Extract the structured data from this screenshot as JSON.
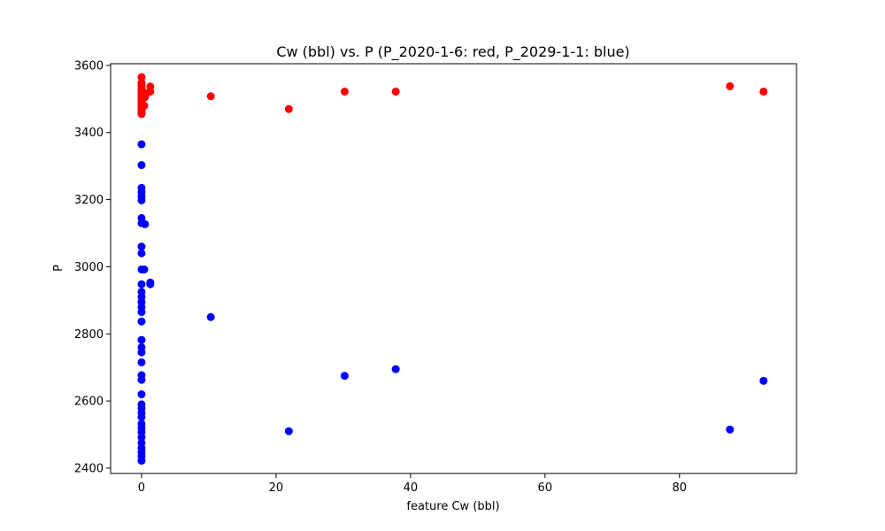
{
  "chart_data": {
    "type": "scatter",
    "title": "Cw (bbl) vs. P (P_2020-1-6: red, P_2029-1-1: blue)",
    "xlabel": "feature Cw (bbl)",
    "ylabel": "P",
    "xlim": [
      -4.6,
      97.4
    ],
    "ylim": [
      2384,
      3605
    ],
    "xticks": [
      0,
      20,
      40,
      60,
      80
    ],
    "yticks": [
      2400,
      2600,
      2800,
      3000,
      3200,
      3400,
      3600
    ],
    "grid": false,
    "legend": "none",
    "series": [
      {
        "color": "#ff0000",
        "points": [
          [
            0,
            3565
          ],
          [
            0,
            3548
          ],
          [
            0,
            3540
          ],
          [
            0,
            3533
          ],
          [
            0,
            3527
          ],
          [
            0,
            3520
          ],
          [
            0,
            3513
          ],
          [
            0,
            3507
          ],
          [
            0,
            3500
          ],
          [
            0,
            3495
          ],
          [
            0,
            3490
          ],
          [
            0,
            3484
          ],
          [
            0,
            3478
          ],
          [
            0,
            3472
          ],
          [
            0,
            3466
          ],
          [
            0,
            3460
          ],
          [
            0,
            3455
          ],
          [
            0.3,
            3520
          ],
          [
            0.5,
            3505
          ],
          [
            0.4,
            3480
          ],
          [
            0.6,
            3512
          ],
          [
            1.3,
            3537
          ],
          [
            1.3,
            3522
          ],
          [
            10.3,
            3508
          ],
          [
            21.9,
            3470
          ],
          [
            30.2,
            3522
          ],
          [
            37.8,
            3522
          ],
          [
            87.5,
            3538
          ],
          [
            92.5,
            3522
          ]
        ]
      },
      {
        "color": "#0000ff",
        "points": [
          [
            0,
            3365
          ],
          [
            0,
            3303
          ],
          [
            0,
            3235
          ],
          [
            0,
            3222
          ],
          [
            0,
            3210
          ],
          [
            0,
            3198
          ],
          [
            0,
            3145
          ],
          [
            0,
            3130
          ],
          [
            0,
            3060
          ],
          [
            0,
            3040
          ],
          [
            0,
            2992
          ],
          [
            0,
            2948
          ],
          [
            0,
            2925
          ],
          [
            0,
            2910
          ],
          [
            0,
            2895
          ],
          [
            0,
            2880
          ],
          [
            0,
            2865
          ],
          [
            0,
            2837
          ],
          [
            0,
            2782
          ],
          [
            0,
            2760
          ],
          [
            0,
            2745
          ],
          [
            0,
            2715
          ],
          [
            0,
            2677
          ],
          [
            0,
            2663
          ],
          [
            0,
            2620
          ],
          [
            0,
            2590
          ],
          [
            0,
            2578
          ],
          [
            0,
            2565
          ],
          [
            0,
            2552
          ],
          [
            0,
            2532
          ],
          [
            0,
            2520
          ],
          [
            0,
            2507
          ],
          [
            0,
            2492
          ],
          [
            0,
            2475
          ],
          [
            0,
            2460
          ],
          [
            0,
            2447
          ],
          [
            0,
            2435
          ],
          [
            0,
            2422
          ],
          [
            0.5,
            3127
          ],
          [
            0.4,
            2992
          ],
          [
            1.3,
            2953
          ],
          [
            1.3,
            2948
          ],
          [
            10.3,
            2850
          ],
          [
            21.9,
            2510
          ],
          [
            30.2,
            2675
          ],
          [
            37.8,
            2695
          ],
          [
            87.5,
            2515
          ],
          [
            92.5,
            2660
          ]
        ]
      }
    ]
  }
}
